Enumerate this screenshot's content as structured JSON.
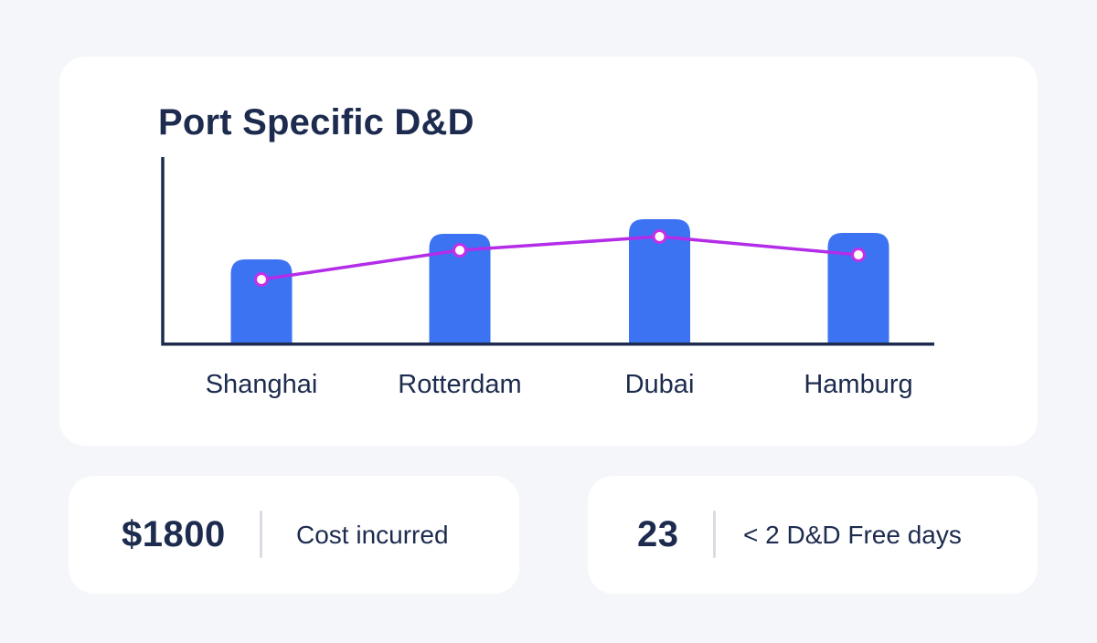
{
  "page": {
    "background_color": "#F4F6FA",
    "card_color": "#FFFFFF"
  },
  "chart_card": {
    "title": "Port Specific D&D"
  },
  "chart_data": {
    "type": "bar",
    "title": "Port Specific D&D",
    "categories": [
      "Shanghai",
      "Rotterdam",
      "Dubai",
      "Hamburg"
    ],
    "series": [
      {
        "name": "port-dd-bars",
        "type": "bar",
        "values": [
          91,
          119,
          135,
          120
        ],
        "color": "#3C73F2"
      },
      {
        "name": "port-dd-trend-line",
        "type": "line",
        "values": [
          69,
          101,
          116,
          96
        ],
        "color": "#B32DE9",
        "marker_fill": "#FFFFFF",
        "marker_ring": "#C62FE8"
      }
    ],
    "xlabel": "",
    "ylabel": "",
    "value_axis_labels_visible": false,
    "units": "relative height in px above axis (no numeric scale shown in image)",
    "axis_color": "#1C2B4E",
    "label_color": "#1C2B4E",
    "grid": false,
    "legend": "none"
  },
  "stat_cards": [
    {
      "value": "$1800",
      "label": "Cost incurred"
    },
    {
      "value": "23",
      "label": "< 2 D&D Free days"
    }
  ]
}
